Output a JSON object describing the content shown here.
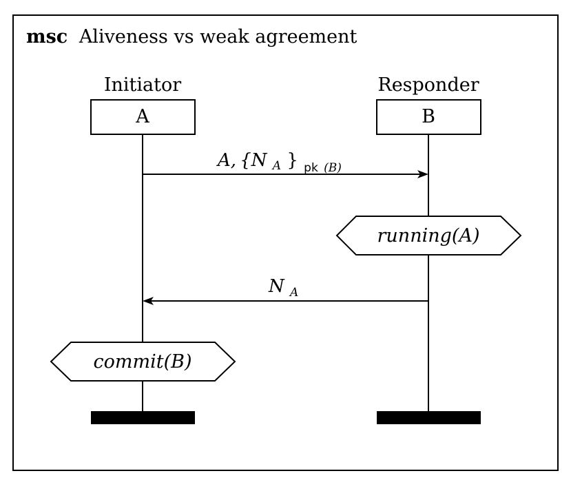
{
  "title": {
    "keyword": "msc",
    "text": "Aliveness vs weak agreement"
  },
  "instances": [
    {
      "role": "Initiator",
      "name": "A"
    },
    {
      "role": "Responder",
      "name": "B"
    }
  ],
  "messages": [
    {
      "from": "A",
      "to": "B",
      "label": {
        "main": "A, {N",
        "sub_a": "A",
        "close": "}",
        "subscript_sans": "pk",
        "subscript_paren": "(B)"
      }
    },
    {
      "from": "B",
      "to": "A",
      "label": {
        "main": "N",
        "sub_a": "A"
      }
    }
  ],
  "actions": [
    {
      "instance": "B",
      "label_fn": "running",
      "label_arg": "(A)"
    },
    {
      "instance": "A",
      "label_fn": "commit",
      "label_arg": "(B)"
    }
  ],
  "colors": {
    "stroke": "#000000",
    "background": "#ffffff"
  }
}
